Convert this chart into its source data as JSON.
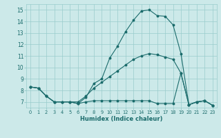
{
  "title": "",
  "xlabel": "Humidex (Indice chaleur)",
  "bg_color": "#cce9e9",
  "grid_color": "#99cccc",
  "line_color": "#1a6b6b",
  "xlim": [
    -0.5,
    23.5
  ],
  "ylim": [
    6.5,
    15.5
  ],
  "xticks": [
    0,
    1,
    2,
    3,
    4,
    5,
    6,
    7,
    8,
    9,
    10,
    11,
    12,
    13,
    14,
    15,
    16,
    17,
    18,
    19,
    20,
    21,
    22,
    23
  ],
  "yticks": [
    7,
    8,
    9,
    10,
    11,
    12,
    13,
    14,
    15
  ],
  "line1_x": [
    0,
    1,
    2,
    3,
    4,
    5,
    6,
    7,
    8,
    9,
    10,
    11,
    12,
    13,
    14,
    15,
    16,
    17,
    18,
    19,
    20,
    21,
    22,
    23
  ],
  "line1_y": [
    8.3,
    8.2,
    7.5,
    7.0,
    7.0,
    7.0,
    6.85,
    7.0,
    7.1,
    7.1,
    7.1,
    7.1,
    7.1,
    7.1,
    7.1,
    7.1,
    6.85,
    6.85,
    6.85,
    9.5,
    6.75,
    7.0,
    7.1,
    6.7
  ],
  "line2_x": [
    0,
    1,
    2,
    3,
    4,
    5,
    6,
    7,
    8,
    9,
    10,
    11,
    12,
    13,
    14,
    15,
    16,
    17,
    18,
    19,
    20,
    21,
    22,
    23
  ],
  "line2_y": [
    8.3,
    8.2,
    7.5,
    7.0,
    7.0,
    7.0,
    7.0,
    7.5,
    8.2,
    8.7,
    9.2,
    9.7,
    10.2,
    10.7,
    11.0,
    11.2,
    11.1,
    10.9,
    10.7,
    9.5,
    6.75,
    7.0,
    7.1,
    6.7
  ],
  "line3_x": [
    0,
    1,
    2,
    3,
    4,
    5,
    6,
    7,
    8,
    9,
    10,
    11,
    12,
    13,
    14,
    15,
    16,
    17,
    18,
    19,
    20,
    21,
    22,
    23
  ],
  "line3_y": [
    8.3,
    8.2,
    7.5,
    7.0,
    7.0,
    7.0,
    6.85,
    7.4,
    8.6,
    9.0,
    10.8,
    11.85,
    13.1,
    14.1,
    14.9,
    15.0,
    14.5,
    14.45,
    13.7,
    11.2,
    6.75,
    7.0,
    7.1,
    6.7
  ]
}
